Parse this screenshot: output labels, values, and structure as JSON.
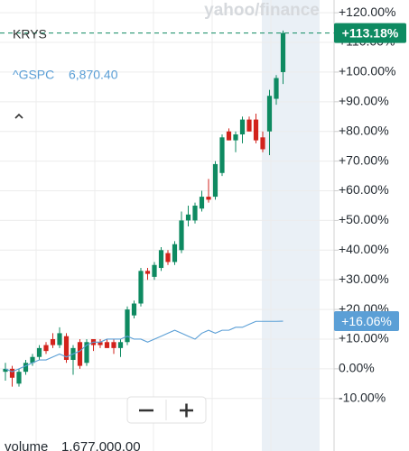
{
  "chart_data": {
    "type": "candlestick",
    "watermark": "yahoo/finance",
    "ylim": [
      -27.7,
      124.3
    ],
    "yticks": [
      {
        "value": 120,
        "label": "+120.00%"
      },
      {
        "value": 110,
        "label": "+110.00%"
      },
      {
        "value": 100,
        "label": "+100.00%"
      },
      {
        "value": 90,
        "label": "+90.00%"
      },
      {
        "value": 80,
        "label": "+80.00%"
      },
      {
        "value": 70,
        "label": "+70.00%"
      },
      {
        "value": 60,
        "label": "+60.00%"
      },
      {
        "value": 50,
        "label": "+50.00%"
      },
      {
        "value": 40,
        "label": "+40.00%"
      },
      {
        "value": 30,
        "label": "+30.00%"
      },
      {
        "value": 20,
        "label": "+20.00%"
      },
      {
        "value": 10,
        "label": "+10.00%"
      },
      {
        "value": 0,
        "label": "0.00%"
      },
      {
        "value": -10,
        "label": "-10.00%"
      }
    ],
    "grid": true,
    "series": [
      {
        "name": "KRYS",
        "color": "#0e8a61",
        "down_color": "#d2231c",
        "value_label": "+113.18%",
        "open": [
          -1,
          0,
          -5,
          -1,
          2,
          4,
          8,
          10,
          8,
          11,
          3,
          9,
          2,
          10,
          9,
          9,
          9,
          7,
          9,
          18,
          22,
          33,
          31,
          34,
          39,
          36,
          40,
          50,
          50,
          54,
          58,
          58,
          66,
          80,
          77,
          79,
          84,
          84,
          78,
          80,
          91,
          100
        ],
        "high": [
          2,
          1,
          0,
          3,
          5,
          8,
          9,
          12,
          14,
          12,
          8,
          10,
          10,
          10,
          10,
          10,
          10,
          10,
          21,
          23,
          34,
          34,
          36,
          41,
          40,
          43,
          53,
          55,
          56,
          60,
          64,
          70,
          79,
          81,
          80,
          85,
          85,
          86,
          80,
          94,
          99,
          114
        ],
        "low": [
          -4,
          -6,
          -6,
          -2,
          1,
          3,
          5,
          7,
          7,
          2,
          -2,
          0,
          1,
          6,
          7,
          7,
          5,
          4,
          8,
          17,
          21,
          30,
          30,
          33,
          35,
          35,
          39,
          48,
          49,
          53,
          56,
          57,
          65,
          77,
          73,
          76,
          80,
          76,
          73,
          72,
          89,
          96
        ],
        "close": [
          0,
          -3,
          -1,
          2,
          4,
          7,
          6,
          8,
          12,
          3,
          7,
          1,
          9,
          8,
          8,
          7,
          7,
          9,
          20,
          22,
          33,
          32,
          35,
          40,
          36,
          42,
          50,
          52,
          55,
          58,
          57,
          69,
          78,
          77,
          79,
          84,
          80,
          77,
          74,
          92,
          98,
          113.18
        ]
      },
      {
        "name": "^GSPC",
        "price": "6,870.40",
        "color": "#5b9fd6",
        "value_label": "+16.06%",
        "values": [
          0,
          -1,
          0,
          1,
          2,
          3,
          3,
          4,
          5,
          4,
          5,
          6,
          8,
          9,
          9,
          10,
          10,
          10,
          11,
          10,
          10,
          9,
          10,
          11,
          12,
          13,
          12,
          11,
          10,
          12,
          13,
          12,
          13,
          13,
          14,
          14,
          15,
          16,
          16,
          16,
          16,
          16.06
        ]
      }
    ],
    "volume_label": "volume",
    "volume_value": "1,677,000.00"
  }
}
